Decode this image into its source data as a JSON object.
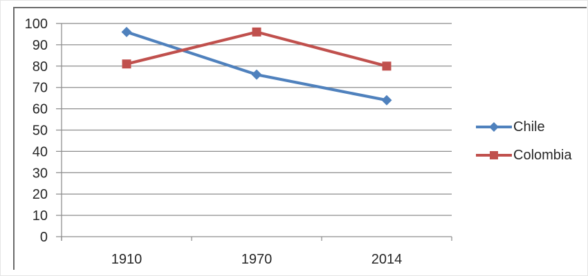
{
  "chart_data": {
    "type": "line",
    "categories": [
      "1910",
      "1970",
      "2014"
    ],
    "series": [
      {
        "name": "Chile",
        "values": [
          96,
          76,
          64
        ],
        "color": "#4F81BD",
        "marker": "diamond"
      },
      {
        "name": "Colombia",
        "values": [
          81,
          96,
          80
        ],
        "color": "#C0504D",
        "marker": "square"
      }
    ],
    "title": "",
    "xlabel": "",
    "ylabel": "",
    "ylim": [
      0,
      100
    ],
    "ytick_step": 10,
    "yticks": [
      "0",
      "10",
      "20",
      "30",
      "40",
      "50",
      "60",
      "70",
      "80",
      "90",
      "100"
    ],
    "grid": true,
    "legend_position": "right",
    "colors": {
      "gridline": "#8c8c8c",
      "axis": "#8c8c8c",
      "text": "#262626",
      "frame_border": "#6b6b6b",
      "outer_border": "#e4e4e4",
      "background": "#ffffff"
    }
  }
}
